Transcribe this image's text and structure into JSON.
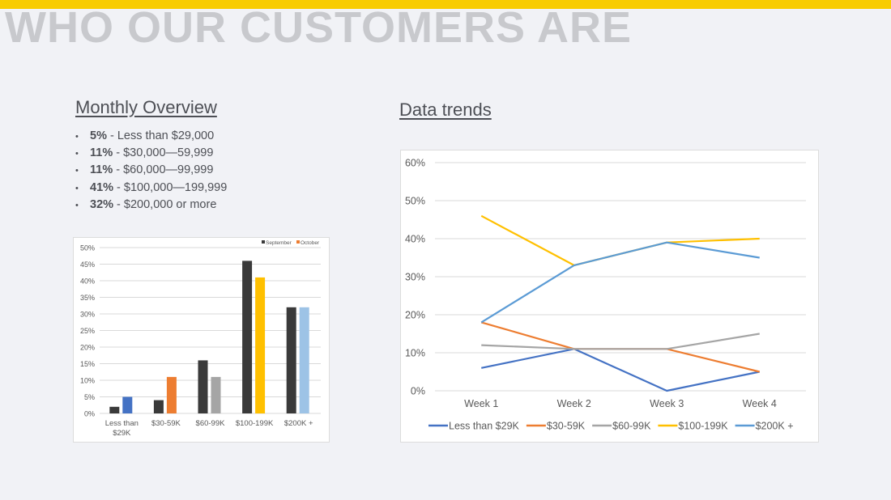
{
  "title": "WHO OUR CUSTOMERS ARE",
  "colors": {
    "accent_bar": "#f8cc00",
    "title": "#c8c9cd"
  },
  "monthly_overview": {
    "heading": "Monthly Overview",
    "bullets": [
      {
        "pct": "5%",
        "text": " - Less than $29,000"
      },
      {
        "pct": "11%",
        "text": " - $30,000—59,999"
      },
      {
        "pct": "11%",
        "text": " - $60,000—99,999"
      },
      {
        "pct": "41%",
        "text": " - $100,000—199,999"
      },
      {
        "pct": "32%",
        "text": " - $200,000 or more"
      }
    ]
  },
  "data_trends": {
    "heading": "Data trends"
  },
  "chart_data": [
    {
      "type": "bar",
      "categories": [
        "Less than $29K",
        "$30-59K",
        "$60-99K",
        "$100-199K",
        "$200K +"
      ],
      "series": [
        {
          "name": "September",
          "values": [
            2,
            4,
            16,
            46,
            32
          ],
          "colors": [
            "#3a3a3a",
            "#3a3a3a",
            "#3a3a3a",
            "#3a3a3a",
            "#3a3a3a"
          ]
        },
        {
          "name": "October",
          "values": [
            5,
            11,
            11,
            41,
            32
          ],
          "colors": [
            "#4472c4",
            "#ed7d31",
            "#a5a5a5",
            "#ffc000",
            "#9dc3e6"
          ]
        }
      ],
      "legend_colors": [
        "#3a3a3a",
        "#ed7d31"
      ],
      "ylim": [
        0,
        50
      ],
      "yticks": [
        "0%",
        "5%",
        "10%",
        "15%",
        "20%",
        "25%",
        "30%",
        "35%",
        "40%",
        "45%",
        "50%"
      ],
      "grid": true,
      "legend": "top-right"
    },
    {
      "type": "line",
      "categories": [
        "Week 1",
        "Week 2",
        "Week 3",
        "Week 4"
      ],
      "series": [
        {
          "name": "Less than $29K",
          "values": [
            6,
            11,
            0,
            5
          ],
          "color": "#4472c4"
        },
        {
          "name": "$30-59K",
          "values": [
            18,
            11,
            11,
            5
          ],
          "color": "#ed7d31"
        },
        {
          "name": "$60-99K",
          "values": [
            12,
            11,
            11,
            15
          ],
          "color": "#a5a5a5"
        },
        {
          "name": "$100-199K",
          "values": [
            46,
            33,
            39,
            40
          ],
          "color": "#ffc000"
        },
        {
          "name": "$200K +",
          "values": [
            18,
            33,
            39,
            35
          ],
          "color": "#5b9bd5"
        }
      ],
      "ylim": [
        0,
        60
      ],
      "yticks": [
        "0%",
        "10%",
        "20%",
        "30%",
        "40%",
        "50%",
        "60%"
      ],
      "grid": true,
      "legend": "bottom"
    }
  ]
}
